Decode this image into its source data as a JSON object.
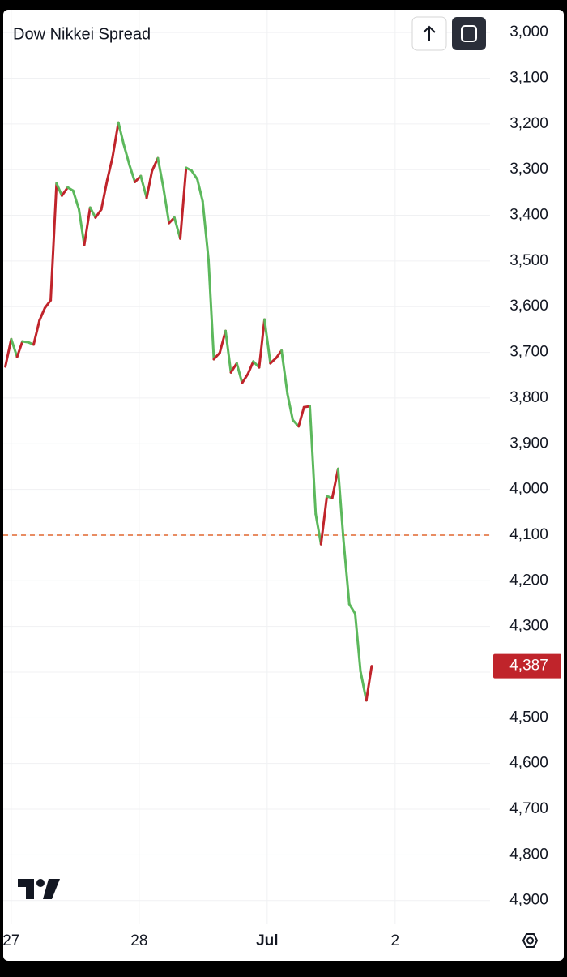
{
  "chart_data": {
    "type": "line",
    "title": "Dow Nikkei Spread",
    "inverted_y": true,
    "grid": true,
    "x": [
      -1.1,
      0,
      1.1,
      2.1,
      3.2,
      4.2,
      5.3,
      6.3,
      7.4,
      8.5,
      9.5,
      10.6,
      11.6,
      12.7,
      13.7,
      14.8,
      15.8,
      16.9,
      18.0,
      19.0,
      20.1,
      21.1,
      22.2,
      23.2,
      24.3,
      25.4,
      26.4,
      27.5,
      28.5,
      29.6,
      30.6,
      31.7,
      32.8,
      33.8,
      34.9,
      35.9,
      37.0,
      38.0,
      39.1,
      40.2,
      41.2,
      42.3,
      43.3,
      44.4,
      45.4,
      46.5,
      47.5,
      48.6,
      49.7,
      50.7,
      51.8,
      52.8,
      53.9,
      54.9,
      56.0,
      57.1,
      58.1,
      59.2,
      60.2,
      61.3,
      62.3,
      63.4,
      64.5,
      65.5,
      66.6,
      67.6
    ],
    "values": [
      3731,
      3671,
      3710,
      3676,
      3678,
      3683,
      3630,
      3603,
      3586,
      3330,
      3357,
      3339,
      3346,
      3387,
      3465,
      3383,
      3405,
      3387,
      3323,
      3273,
      3197,
      3245,
      3291,
      3327,
      3314,
      3362,
      3303,
      3275,
      3337,
      3417,
      3405,
      3451,
      3296,
      3302,
      3321,
      3369,
      3497,
      3715,
      3701,
      3653,
      3744,
      3724,
      3767,
      3747,
      3720,
      3733,
      3628,
      3724,
      3712,
      3696,
      3791,
      3848,
      3862,
      3820,
      3818,
      4054,
      4120,
      4015,
      4019,
      3955,
      4109,
      4251,
      4272,
      4398,
      4462,
      4387
    ],
    "increase_color": "#5cb85c",
    "decrease_color": "#c0242b",
    "xlim": [
      -1.5,
      89.8
    ],
    "xticks": [
      {
        "value": 0,
        "label": "27"
      },
      {
        "value": 24,
        "label": "28"
      },
      {
        "value": 48,
        "label": "Jul"
      },
      {
        "value": 72,
        "label": "2"
      }
    ],
    "ylim": [
      2950,
      4952
    ],
    "yticks": [
      {
        "value": 3000,
        "label": "3,000"
      },
      {
        "value": 3100,
        "label": "3,100"
      },
      {
        "value": 3200,
        "label": "3,200"
      },
      {
        "value": 3300,
        "label": "3,300"
      },
      {
        "value": 3400,
        "label": "3,400"
      },
      {
        "value": 3500,
        "label": "3,500"
      },
      {
        "value": 3600,
        "label": "3,600"
      },
      {
        "value": 3700,
        "label": "3,700"
      },
      {
        "value": 3800,
        "label": "3,800"
      },
      {
        "value": 3900,
        "label": "3,900"
      },
      {
        "value": 4000,
        "label": "4,000"
      },
      {
        "value": 4100,
        "label": "4,100"
      },
      {
        "value": 4200,
        "label": "4,200"
      },
      {
        "value": 4300,
        "label": "4,300"
      },
      {
        "value": 4400,
        "label": "4,400"
      },
      {
        "value": 4500,
        "label": "4,500"
      },
      {
        "value": 4600,
        "label": "4,600"
      },
      {
        "value": 4700,
        "label": "4,700"
      },
      {
        "value": 4800,
        "label": "4,800"
      },
      {
        "value": 4900,
        "label": "4,900"
      }
    ],
    "price_line": {
      "value": 4100,
      "color": "#e0662e"
    },
    "last_value": {
      "value": 4387,
      "label": "4,387",
      "color": "#c0242b"
    }
  }
}
